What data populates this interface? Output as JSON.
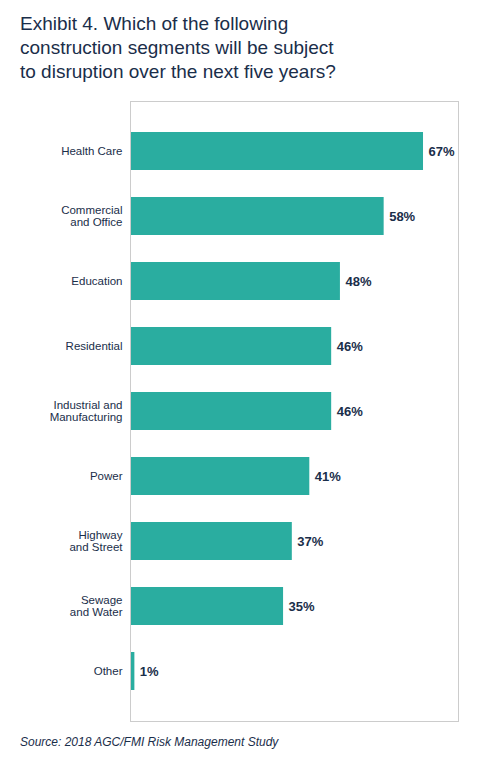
{
  "chart_data": {
    "type": "bar",
    "orientation": "horizontal",
    "title": "Exhibit 4. Which of the following\nconstruction segments will be subject\nto disruption over the next five years?",
    "categories": [
      "Other",
      "Sewage\nand Water",
      "Highway\nand Street",
      "Power",
      "Industrial and\nManufacturing",
      "Residential",
      "Education",
      "Commercial\nand Office",
      "Health Care"
    ],
    "values": [
      1,
      35,
      37,
      41,
      46,
      46,
      48,
      58,
      67
    ],
    "value_labels": [
      "1%",
      "35%",
      "37%",
      "41%",
      "46%",
      "46%",
      "48%",
      "58%",
      "67%"
    ],
    "data_labels": true,
    "color": "#2aada0",
    "xlim": [
      0,
      75
    ],
    "tick_labels": "y",
    "grid": false,
    "annotations": [
      "Source:  2018 AGC/FMI Risk Management Study"
    ]
  }
}
